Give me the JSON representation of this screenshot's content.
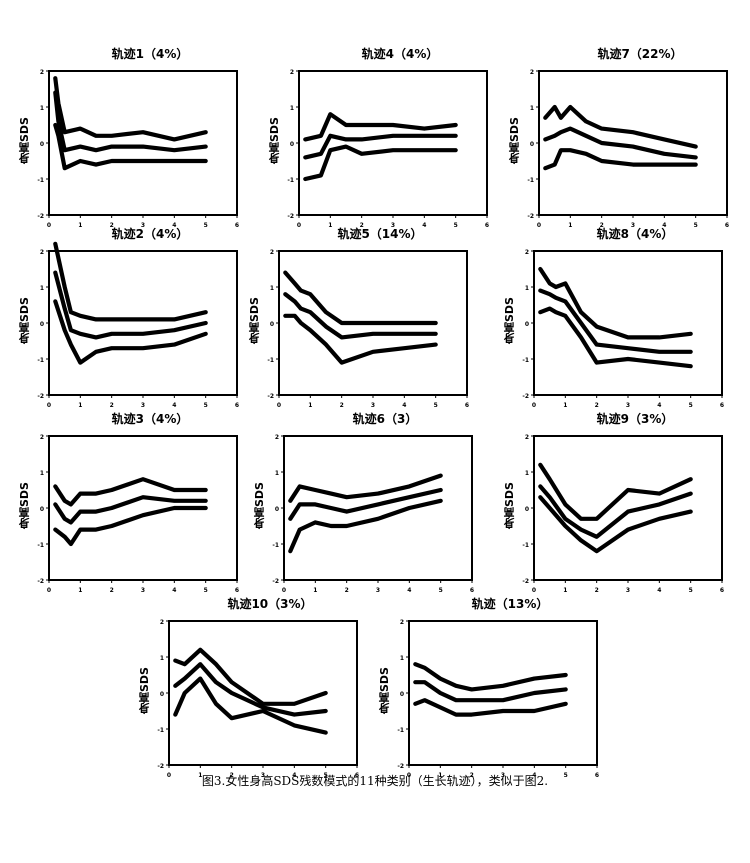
{
  "caption": "图3.女性身高SDS残数模式的11种类别（生长轨迹），类似于图2.",
  "chart_data": [
    {
      "type": "line",
      "title": "轨迹1（4%）",
      "ylabel": "身高SDS",
      "xlim": [
        0,
        6
      ],
      "ylim": [
        -2,
        2
      ],
      "xticks": [
        0,
        1,
        2,
        3,
        4,
        5,
        6
      ],
      "yticks": [
        -2,
        -1,
        0,
        1,
        2
      ],
      "series": [
        {
          "x": [
            0.2,
            0.3,
            0.5,
            1,
            1.5,
            2,
            3,
            4,
            5
          ],
          "values": [
            1.8,
            1.1,
            0.3,
            0.4,
            0.2,
            0.2,
            0.3,
            0.1,
            0.3
          ]
        },
        {
          "x": [
            0.2,
            0.3,
            0.5,
            1,
            1.5,
            2,
            3,
            4,
            5
          ],
          "values": [
            1.4,
            0.6,
            -0.2,
            -0.1,
            -0.2,
            -0.1,
            -0.1,
            -0.2,
            -0.1
          ]
        },
        {
          "x": [
            0.2,
            0.3,
            0.5,
            1,
            1.5,
            2,
            3,
            4,
            5
          ],
          "values": [
            0.5,
            0.2,
            -0.7,
            -0.5,
            -0.6,
            -0.5,
            -0.5,
            -0.5,
            -0.5
          ]
        }
      ]
    },
    {
      "type": "line",
      "title": "轨迹4（4%）",
      "ylabel": "身高SDS",
      "xlim": [
        0,
        6
      ],
      "ylim": [
        -2,
        2
      ],
      "xticks": [
        0,
        1,
        2,
        3,
        4,
        5,
        6
      ],
      "yticks": [
        -2,
        -1,
        0,
        1,
        2
      ],
      "series": [
        {
          "x": [
            0.2,
            0.7,
            1,
            1.5,
            2,
            3,
            4,
            5
          ],
          "values": [
            0.1,
            0.2,
            0.8,
            0.5,
            0.5,
            0.5,
            0.4,
            0.5
          ]
        },
        {
          "x": [
            0.2,
            0.7,
            1,
            1.5,
            2,
            3,
            4,
            5
          ],
          "values": [
            -0.4,
            -0.3,
            0.2,
            0.1,
            0.1,
            0.2,
            0.2,
            0.2
          ]
        },
        {
          "x": [
            0.2,
            0.7,
            1,
            1.5,
            2,
            3,
            4,
            5
          ],
          "values": [
            -1.0,
            -0.9,
            -0.2,
            -0.1,
            -0.3,
            -0.2,
            -0.2,
            -0.2
          ]
        }
      ]
    },
    {
      "type": "line",
      "title": "轨迹7（22%）",
      "ylabel": "身高SDS",
      "xlim": [
        0,
        6
      ],
      "ylim": [
        -2,
        2
      ],
      "xticks": [
        0,
        1,
        2,
        3,
        4,
        5,
        6
      ],
      "yticks": [
        -2,
        -1,
        0,
        1,
        2
      ],
      "series": [
        {
          "x": [
            0.2,
            0.5,
            0.7,
            1,
            1.5,
            2,
            3,
            4,
            5
          ],
          "values": [
            0.7,
            1.0,
            0.7,
            1.0,
            0.6,
            0.4,
            0.3,
            0.1,
            -0.1
          ]
        },
        {
          "x": [
            0.2,
            0.5,
            0.7,
            1,
            1.5,
            2,
            3,
            4,
            5
          ],
          "values": [
            0.1,
            0.2,
            0.3,
            0.4,
            0.2,
            0.0,
            -0.1,
            -0.3,
            -0.4
          ]
        },
        {
          "x": [
            0.2,
            0.5,
            0.7,
            1,
            1.5,
            2,
            3,
            4,
            5
          ],
          "values": [
            -0.7,
            -0.6,
            -0.2,
            -0.2,
            -0.3,
            -0.5,
            -0.6,
            -0.6,
            -0.6
          ]
        }
      ]
    },
    {
      "type": "line",
      "title": "轨迹2（4%）",
      "ylabel": "身高SDS",
      "xlim": [
        0,
        6
      ],
      "ylim": [
        -2,
        2
      ],
      "xticks": [
        0,
        1,
        2,
        3,
        4,
        5,
        6
      ],
      "yticks": [
        -2,
        -1,
        0,
        1,
        2
      ],
      "series": [
        {
          "x": [
            0.2,
            0.5,
            0.7,
            1,
            1.5,
            2,
            3,
            4,
            5
          ],
          "values": [
            2.2,
            1.0,
            0.3,
            0.2,
            0.1,
            0.1,
            0.1,
            0.1,
            0.3
          ]
        },
        {
          "x": [
            0.2,
            0.5,
            0.7,
            1,
            1.5,
            2,
            3,
            4,
            5
          ],
          "values": [
            1.4,
            0.4,
            -0.2,
            -0.3,
            -0.4,
            -0.3,
            -0.3,
            -0.2,
            0.0
          ]
        },
        {
          "x": [
            0.2,
            0.5,
            0.7,
            1,
            1.5,
            2,
            3,
            4,
            5
          ],
          "values": [
            0.6,
            -0.2,
            -0.6,
            -1.1,
            -0.8,
            -0.7,
            -0.7,
            -0.6,
            -0.3
          ]
        }
      ]
    },
    {
      "type": "line",
      "title": "轨迹5（14%）",
      "ylabel": "身高SDS",
      "xlim": [
        0,
        6
      ],
      "ylim": [
        -2,
        2
      ],
      "xticks": [
        0,
        1,
        2,
        3,
        4,
        5,
        6
      ],
      "yticks": [
        -2,
        -1,
        0,
        1,
        2
      ],
      "series": [
        {
          "x": [
            0.2,
            0.5,
            0.7,
            1,
            1.5,
            2,
            3,
            4,
            5
          ],
          "values": [
            1.4,
            1.1,
            0.9,
            0.8,
            0.3,
            0.0,
            0.0,
            0.0,
            0.0
          ]
        },
        {
          "x": [
            0.2,
            0.5,
            0.7,
            1,
            1.5,
            2,
            3,
            4,
            5
          ],
          "values": [
            0.8,
            0.6,
            0.4,
            0.3,
            -0.1,
            -0.4,
            -0.3,
            -0.3,
            -0.3
          ]
        },
        {
          "x": [
            0.2,
            0.5,
            0.7,
            1,
            1.5,
            2,
            3,
            4,
            5
          ],
          "values": [
            0.2,
            0.2,
            0.0,
            -0.2,
            -0.6,
            -1.1,
            -0.8,
            -0.7,
            -0.6
          ]
        }
      ]
    },
    {
      "type": "line",
      "title": "轨迹8（4%）",
      "ylabel": "身高SDS",
      "xlim": [
        0,
        6
      ],
      "ylim": [
        -2,
        2
      ],
      "xticks": [
        0,
        1,
        2,
        3,
        4,
        5,
        6
      ],
      "yticks": [
        -2,
        -1,
        0,
        1,
        2
      ],
      "series": [
        {
          "x": [
            0.2,
            0.5,
            0.7,
            1,
            1.5,
            2,
            3,
            4,
            5
          ],
          "values": [
            1.5,
            1.1,
            1.0,
            1.1,
            0.3,
            -0.1,
            -0.4,
            -0.4,
            -0.3
          ]
        },
        {
          "x": [
            0.2,
            0.5,
            0.7,
            1,
            1.5,
            2,
            3,
            4,
            5
          ],
          "values": [
            0.9,
            0.8,
            0.7,
            0.6,
            0.0,
            -0.6,
            -0.7,
            -0.8,
            -0.8
          ]
        },
        {
          "x": [
            0.2,
            0.5,
            0.7,
            1,
            1.5,
            2,
            3,
            4,
            5
          ],
          "values": [
            0.3,
            0.4,
            0.3,
            0.2,
            -0.4,
            -1.1,
            -1.0,
            -1.1,
            -1.2
          ]
        }
      ]
    },
    {
      "type": "line",
      "title": "轨迹3（4%）",
      "ylabel": "身高SDS",
      "xlim": [
        0,
        6
      ],
      "ylim": [
        -2,
        2
      ],
      "xticks": [
        0,
        1,
        2,
        3,
        4,
        5,
        6
      ],
      "yticks": [
        -2,
        -1,
        0,
        1,
        2
      ],
      "series": [
        {
          "x": [
            0.2,
            0.5,
            0.7,
            1,
            1.5,
            2,
            3,
            4,
            5
          ],
          "values": [
            0.6,
            0.2,
            0.1,
            0.4,
            0.4,
            0.5,
            0.8,
            0.5,
            0.5
          ]
        },
        {
          "x": [
            0.2,
            0.5,
            0.7,
            1,
            1.5,
            2,
            3,
            4,
            5
          ],
          "values": [
            0.1,
            -0.3,
            -0.4,
            -0.1,
            -0.1,
            0.0,
            0.3,
            0.2,
            0.2
          ]
        },
        {
          "x": [
            0.2,
            0.5,
            0.7,
            1,
            1.5,
            2,
            3,
            4,
            5
          ],
          "values": [
            -0.6,
            -0.8,
            -1.0,
            -0.6,
            -0.6,
            -0.5,
            -0.2,
            0.0,
            0.0
          ]
        }
      ]
    },
    {
      "type": "line",
      "title": "轨迹6（3）",
      "ylabel": "身高SDS",
      "xlim": [
        0,
        6
      ],
      "ylim": [
        -2,
        2
      ],
      "xticks": [
        0,
        1,
        2,
        3,
        4,
        5,
        6
      ],
      "yticks": [
        -2,
        -1,
        0,
        1,
        2
      ],
      "series": [
        {
          "x": [
            0.2,
            0.5,
            1,
            1.5,
            2,
            3,
            4,
            5
          ],
          "values": [
            0.2,
            0.6,
            0.5,
            0.4,
            0.3,
            0.4,
            0.6,
            0.9
          ]
        },
        {
          "x": [
            0.2,
            0.5,
            1,
            1.5,
            2,
            3,
            4,
            5
          ],
          "values": [
            -0.3,
            0.1,
            0.1,
            0.0,
            -0.1,
            0.1,
            0.3,
            0.5
          ]
        },
        {
          "x": [
            0.2,
            0.5,
            1,
            1.5,
            2,
            3,
            4,
            5
          ],
          "values": [
            -1.2,
            -0.6,
            -0.4,
            -0.5,
            -0.5,
            -0.3,
            0.0,
            0.2
          ]
        }
      ]
    },
    {
      "type": "line",
      "title": "轨迹9（3%）",
      "ylabel": "身高SDS",
      "xlim": [
        0,
        6
      ],
      "ylim": [
        -2,
        2
      ],
      "xticks": [
        0,
        1,
        2,
        3,
        4,
        5,
        6
      ],
      "yticks": [
        -2,
        -1,
        0,
        1,
        2
      ],
      "series": [
        {
          "x": [
            0.2,
            0.5,
            1,
            1.5,
            2,
            3,
            4,
            5
          ],
          "values": [
            1.2,
            0.8,
            0.1,
            -0.3,
            -0.3,
            0.5,
            0.4,
            0.8
          ]
        },
        {
          "x": [
            0.2,
            0.5,
            1,
            1.5,
            2,
            3,
            4,
            5
          ],
          "values": [
            0.6,
            0.3,
            -0.3,
            -0.6,
            -0.8,
            -0.1,
            0.1,
            0.4
          ]
        },
        {
          "x": [
            0.2,
            0.5,
            1,
            1.5,
            2,
            3,
            4,
            5
          ],
          "values": [
            0.3,
            0.0,
            -0.5,
            -0.9,
            -1.2,
            -0.6,
            -0.3,
            -0.1
          ]
        }
      ]
    },
    {
      "type": "line",
      "title": "轨迹10（3%）",
      "ylabel": "身高SDS",
      "xlim": [
        0,
        6
      ],
      "ylim": [
        -2,
        2
      ],
      "xticks": [
        0,
        1,
        2,
        3,
        4,
        5,
        6
      ],
      "yticks": [
        -2,
        -1,
        0,
        1,
        2
      ],
      "series": [
        {
          "x": [
            0.2,
            0.5,
            1,
            1.5,
            2,
            3,
            4,
            5
          ],
          "values": [
            0.9,
            0.8,
            1.2,
            0.8,
            0.3,
            -0.3,
            -0.3,
            0.0
          ]
        },
        {
          "x": [
            0.2,
            0.5,
            1,
            1.5,
            2,
            3,
            4,
            5
          ],
          "values": [
            0.2,
            0.4,
            0.8,
            0.3,
            0.0,
            -0.4,
            -0.6,
            -0.5
          ]
        },
        {
          "x": [
            0.2,
            0.5,
            1,
            1.5,
            2,
            3,
            4,
            5
          ],
          "values": [
            -0.6,
            0.0,
            0.4,
            -0.3,
            -0.7,
            -0.5,
            -0.9,
            -1.1
          ]
        }
      ]
    },
    {
      "type": "line",
      "title": "轨迹（13%）",
      "ylabel": "身高SDS",
      "xlim": [
        0,
        6
      ],
      "ylim": [
        -2,
        2
      ],
      "xticks": [
        0,
        1,
        2,
        3,
        4,
        5,
        6
      ],
      "yticks": [
        -2,
        -1,
        0,
        1,
        2
      ],
      "series": [
        {
          "x": [
            0.2,
            0.5,
            1,
            1.5,
            2,
            3,
            4,
            5
          ],
          "values": [
            0.8,
            0.7,
            0.4,
            0.2,
            0.1,
            0.2,
            0.4,
            0.5
          ]
        },
        {
          "x": [
            0.2,
            0.5,
            1,
            1.5,
            2,
            3,
            4,
            5
          ],
          "values": [
            0.3,
            0.3,
            0.0,
            -0.2,
            -0.2,
            -0.2,
            0.0,
            0.1
          ]
        },
        {
          "x": [
            0.2,
            0.5,
            1,
            1.5,
            2,
            3,
            4,
            5
          ],
          "values": [
            -0.3,
            -0.2,
            -0.4,
            -0.6,
            -0.6,
            -0.5,
            -0.5,
            -0.3
          ]
        }
      ]
    }
  ]
}
